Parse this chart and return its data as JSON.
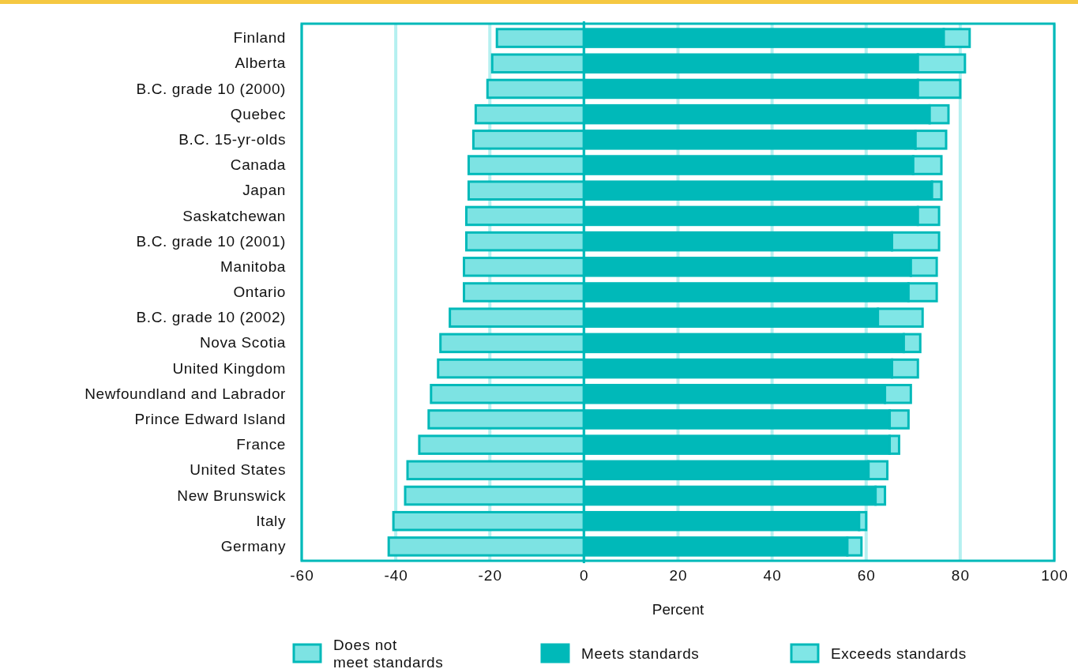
{
  "chart_data": {
    "type": "bar",
    "orientation": "horizontal",
    "stacked": true,
    "xlabel": "Percent",
    "categories": [
      "Finland",
      "Alberta",
      "B.C. grade 10 (2000)",
      "Quebec",
      "B.C. 15-yr-olds",
      "Canada",
      "Japan",
      "Saskatchewan",
      "B.C. grade 10 (2001)",
      "Manitoba",
      "Ontario",
      "B.C. grade 10 (2002)",
      "Nova Scotia",
      "United Kingdom",
      "Newfoundland and Labrador",
      "Prince Edward Island",
      "France",
      "United States",
      "New Brunswick",
      "Italy",
      "Germany"
    ],
    "series": [
      {
        "name": "Does not\nmeet standards",
        "color": "#7de3e3",
        "values": [
          -18.5,
          -19.5,
          -20.5,
          -23,
          -23.5,
          -24.5,
          -24.5,
          -25,
          -25,
          -25.5,
          -25.5,
          -28.5,
          -30.5,
          -31,
          -32.5,
          -33,
          -35,
          -37.5,
          -38,
          -40.5,
          -41.5
        ]
      },
      {
        "name": "Meets standards",
        "color": "#00b9b9",
        "values": [
          76.5,
          71,
          71,
          73.5,
          70.5,
          70,
          74,
          71,
          65.5,
          69.5,
          69,
          62.5,
          68,
          65.5,
          64,
          65,
          65,
          60.5,
          62,
          58.5,
          56
        ]
      },
      {
        "name": "Exceeds standards",
        "color": "#80e6e6",
        "values": [
          5.5,
          10,
          9,
          4,
          6.5,
          6,
          2,
          4.5,
          10,
          5.5,
          6,
          9.5,
          3.5,
          5.5,
          5.5,
          4,
          2,
          4,
          2,
          1.5,
          3
        ]
      }
    ],
    "xlim": [
      -60,
      100
    ],
    "xticks": [
      -60,
      -40,
      -20,
      0,
      20,
      40,
      60,
      80,
      100
    ],
    "grid": "x",
    "legend": "bottom",
    "ref_lines": [
      {
        "axis": "x",
        "value": 0,
        "color": "#00b9b9"
      }
    ]
  }
}
